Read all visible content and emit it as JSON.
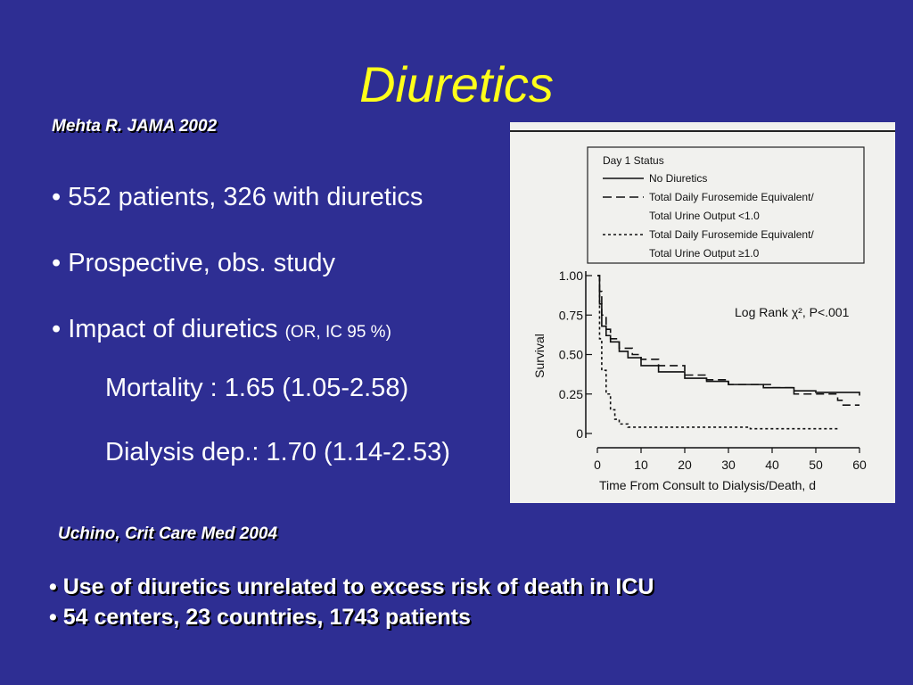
{
  "slide": {
    "title": "Diuretics",
    "ref1": "Mehta R. JAMA  2002",
    "bullets": [
      "• 552 patients, 326 with diuretics",
      "• Prospective, obs. study",
      "• Impact of diuretics"
    ],
    "impact_note": "(OR, IC 95 %)",
    "mortality": "Mortality : 1.65 (1.05-2.58)",
    "dialysis": "Dialysis dep.: 1.70 (1.14-2.53)",
    "ref2": "Uchino, Crit Care Med 2004",
    "bold_bullets": [
      "• Use of diuretics unrelated to excess risk of death in ICU",
      "• 54 centers, 23 countries, 1743 patients"
    ],
    "colors": {
      "background": "#2e2e93",
      "title": "#ffff1a",
      "text": "#ffffff"
    }
  },
  "chart_data": {
    "type": "line",
    "xlabel": "Time From Consult to Dialysis/Death, d",
    "ylabel": "Survival",
    "xlim": [
      0,
      60
    ],
    "ylim": [
      0,
      1.0
    ],
    "x_ticks": [
      0,
      10,
      20,
      30,
      40,
      50,
      60
    ],
    "y_ticks": [
      0,
      0.25,
      0.5,
      0.75,
      1.0
    ],
    "y_tick_labels": [
      "0",
      "0.25",
      "0.50",
      "0.75",
      "1.00"
    ],
    "annotation": "Log Rank χ², P<.001",
    "legend_title": "Day 1 Status",
    "legend_position": "top",
    "series": [
      {
        "name": "No Diuretics",
        "style": "solid",
        "points": [
          [
            0,
            1.0
          ],
          [
            0.5,
            0.82
          ],
          [
            1,
            0.68
          ],
          [
            2,
            0.62
          ],
          [
            3,
            0.58
          ],
          [
            5,
            0.52
          ],
          [
            7,
            0.48
          ],
          [
            10,
            0.43
          ],
          [
            14,
            0.39
          ],
          [
            20,
            0.35
          ],
          [
            25,
            0.33
          ],
          [
            30,
            0.31
          ],
          [
            38,
            0.29
          ],
          [
            45,
            0.27
          ],
          [
            50,
            0.26
          ],
          [
            60,
            0.24
          ]
        ]
      },
      {
        "name": "Total Daily Furosemide Equivalent/ Total Urine Output <1.0",
        "style": "dashed",
        "points": [
          [
            0,
            1.0
          ],
          [
            0.5,
            0.9
          ],
          [
            1,
            0.75
          ],
          [
            2,
            0.66
          ],
          [
            3,
            0.6
          ],
          [
            5,
            0.54
          ],
          [
            8,
            0.5
          ],
          [
            10,
            0.47
          ],
          [
            14,
            0.43
          ],
          [
            20,
            0.37
          ],
          [
            25,
            0.34
          ],
          [
            30,
            0.31
          ],
          [
            40,
            0.29
          ],
          [
            45,
            0.25
          ],
          [
            55,
            0.21
          ],
          [
            56,
            0.18
          ],
          [
            60,
            0.18
          ]
        ]
      },
      {
        "name": "Total Daily Furosemide Equivalent/ Total Urine Output ≥1.0",
        "style": "dotted",
        "points": [
          [
            0,
            1.0
          ],
          [
            0.5,
            0.6
          ],
          [
            1,
            0.4
          ],
          [
            2,
            0.25
          ],
          [
            3,
            0.15
          ],
          [
            4,
            0.09
          ],
          [
            5,
            0.06
          ],
          [
            7,
            0.04
          ],
          [
            20,
            0.04
          ],
          [
            35,
            0.03
          ],
          [
            55,
            0.03
          ]
        ]
      }
    ]
  }
}
